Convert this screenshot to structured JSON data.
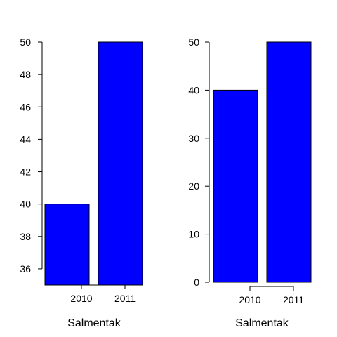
{
  "chart_data": [
    {
      "type": "bar",
      "categories": [
        "2010",
        "2011"
      ],
      "values": [
        40,
        50
      ],
      "title": "",
      "xlabel": "Salmentak",
      "ylabel": "",
      "ylim": [
        35,
        50
      ],
      "yticks": [
        36,
        38,
        40,
        42,
        44,
        46,
        48,
        50
      ],
      "grid": false,
      "bar_color": "#0000ff",
      "bar_border": "#000000"
    },
    {
      "type": "bar",
      "categories": [
        "2010",
        "2011"
      ],
      "values": [
        40,
        50
      ],
      "title": "",
      "xlabel": "Salmentak",
      "ylabel": "",
      "ylim": [
        0,
        50
      ],
      "yticks": [
        0,
        10,
        20,
        30,
        40,
        50
      ],
      "grid": false,
      "bar_color": "#0000ff",
      "bar_border": "#000000"
    }
  ]
}
